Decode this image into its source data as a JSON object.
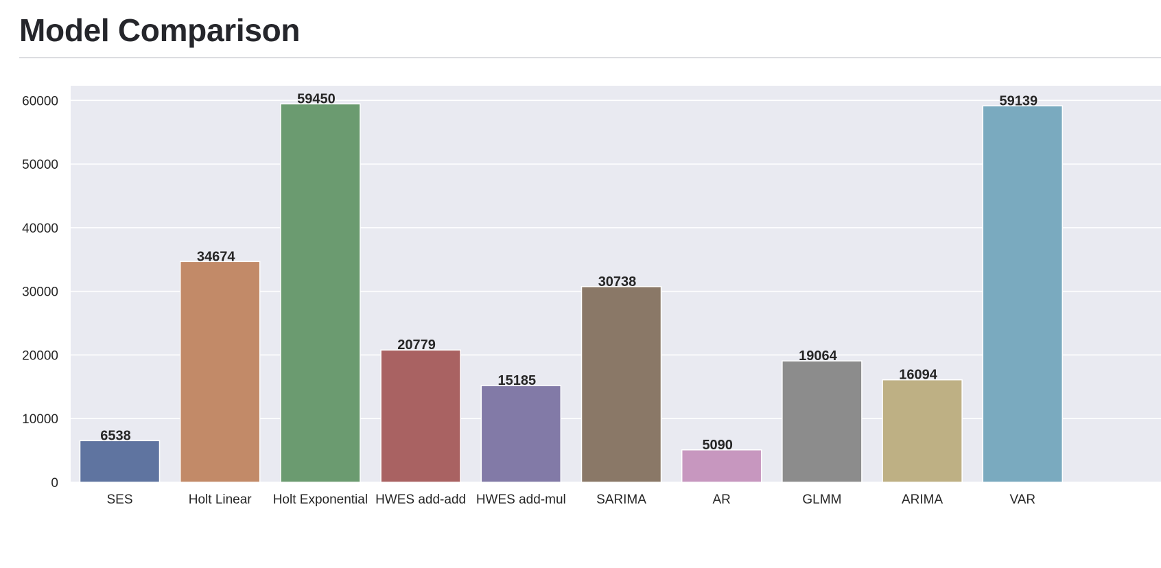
{
  "page": {
    "title": "Model Comparison"
  },
  "chart_data": {
    "type": "bar",
    "title": "",
    "xlabel": "",
    "ylabel": "",
    "categories": [
      "SES",
      "Holt Linear",
      "Holt Exponential",
      "HWES add-add",
      "HWES add-mul",
      "SARIMA",
      "AR",
      "GLMM",
      "ARIMA",
      "VAR"
    ],
    "values": [
      6538,
      34674,
      59450,
      20779,
      15185,
      30738,
      5090,
      19064,
      16094,
      59139
    ],
    "data_labels": [
      "6538",
      "34674",
      "59450",
      "20779",
      "15185",
      "30738",
      "5090",
      "19064",
      "16094",
      "59139"
    ],
    "colors": [
      "#5f74a0",
      "#c28a68",
      "#6b9b70",
      "#a96262",
      "#827aa7",
      "#8a7867",
      "#c797bf",
      "#8c8c8c",
      "#beb084",
      "#7aaabf"
    ],
    "ylim": [
      0,
      62300
    ],
    "yticks": [
      0,
      10000,
      20000,
      30000,
      40000,
      50000,
      60000
    ],
    "ytick_labels": [
      "0",
      "10000",
      "20000",
      "30000",
      "40000",
      "50000",
      "60000"
    ],
    "grid": true,
    "background": "#e9eaf1",
    "legend": false
  }
}
